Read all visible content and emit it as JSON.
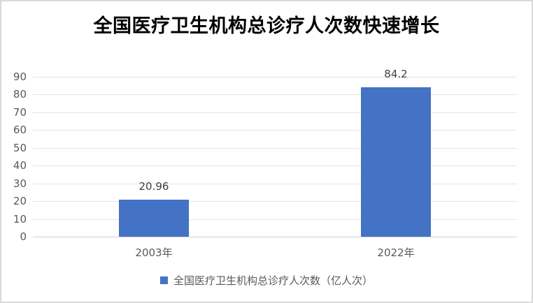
{
  "title": "全国医疗卫生机构总诊疗人次数快速增长",
  "chart_data": {
    "type": "bar",
    "title": "全国医疗卫生机构总诊疗人次数快速增长",
    "categories": [
      "2003年",
      "2022年"
    ],
    "series": [
      {
        "name": "全国医疗卫生机构总诊疗人次数（亿人次）",
        "values": [
          20.96,
          84.2
        ]
      }
    ],
    "data_labels": [
      "20.96",
      "84.2"
    ],
    "xlabel": "",
    "ylabel": "",
    "ylim": [
      0,
      90
    ],
    "yticks": [
      0,
      10,
      20,
      30,
      40,
      50,
      60,
      70,
      80,
      90
    ],
    "grid": true,
    "legend_position": "bottom",
    "bar_color": "#4472C4"
  },
  "legend": {
    "label": "全国医疗卫生机构总诊疗人次数（亿人次）",
    "swatch_color": "#4472C4"
  },
  "colors": {
    "bar": "#4472C4",
    "gridline": "#E3E3E3",
    "axis_line": "#CFCFCF",
    "tick_label": "#595959",
    "category_label": "#595959",
    "data_label": "#404040",
    "title": "#000000",
    "canvas_border": "#D9D9D9",
    "background": "#FFFFFF"
  }
}
